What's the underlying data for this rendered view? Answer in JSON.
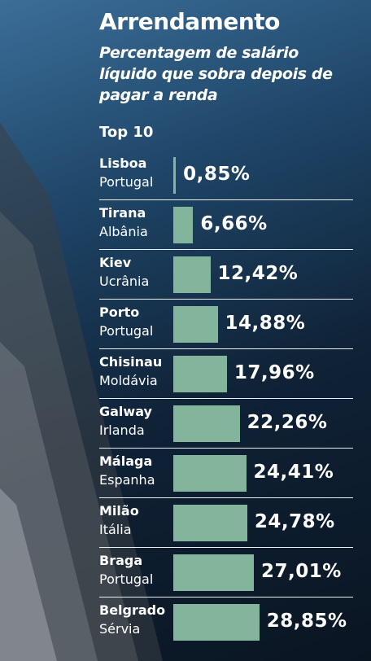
{
  "chart_data": {
    "type": "bar",
    "title": "Arrendamento",
    "subtitle": "Percentagem de salário líquido que sobra depois de pagar a renda",
    "heading": "Top 10",
    "categories": [
      "Lisboa",
      "Tirana",
      "Kiev",
      "Porto",
      "Chisinau",
      "Galway",
      "Málaga",
      "Milão",
      "Braga",
      "Belgrado"
    ],
    "countries": [
      "Portugal",
      "Albânia",
      "Ucrânia",
      "Portugal",
      "Moldávia",
      "Irlanda",
      "Espanha",
      "Itália",
      "Portugal",
      "Sérvia"
    ],
    "values": [
      0.85,
      6.66,
      12.42,
      14.88,
      17.96,
      22.26,
      24.41,
      24.78,
      27.01,
      28.85
    ],
    "value_labels": [
      "0,85%",
      "6,66%",
      "12,42%",
      "14,88%",
      "17,96%",
      "22,26%",
      "24,41%",
      "24,78%",
      "27,01%",
      "28,85%"
    ],
    "color": "#82b59c",
    "xlim": [
      0,
      30
    ]
  }
}
